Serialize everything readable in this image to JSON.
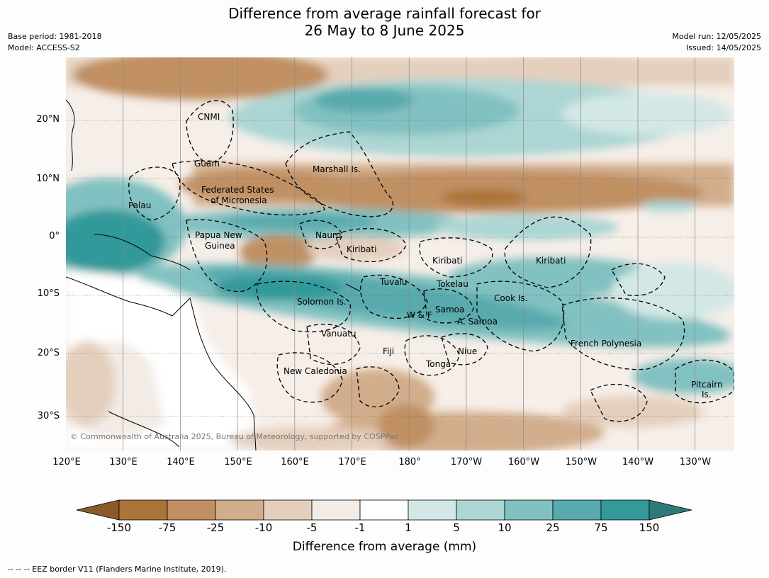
{
  "title_line1": "Difference from average rainfall forecast for",
  "title_line2": "26 May to 8 June 2025",
  "base_period": "Base period: 1981-2018",
  "model": "Model: ACCESS-S2",
  "model_run": "Model run: 12/05/2025",
  "issued": "Issued: 14/05/2025",
  "lon_labels": [
    "120°E",
    "130°E",
    "140°E",
    "150°E",
    "160°E",
    "170°E",
    "180°",
    "170°W",
    "160°W",
    "150°W",
    "140°W",
    "130°W"
  ],
  "lat_labels": [
    "20°N",
    "10°N",
    "0°",
    "10°S",
    "20°S",
    "30°S"
  ],
  "region_labels": [
    "CNMI",
    "Guam",
    "Marshall Is.",
    "Federated States",
    "of Micronesia",
    "Palau",
    "Papua New",
    "Guinea",
    "Nauru",
    "Kiribati",
    "Kiribati",
    "Kiribati",
    "Tuvalu",
    "Tokelau",
    "Solomon Is.",
    "W & F",
    "Samoa",
    "A. Samoa",
    "Cook Is.",
    "Vanuatu",
    "Fiji",
    "Niue",
    "Tonga",
    "New Caledonia",
    "French Polynesia",
    "Pitcairn",
    "Is."
  ],
  "copyright": "© Commonwealth of Australia 2025, Bureau of Meteorology, supported by COSPPac",
  "colorbar": {
    "title": "Difference from average (mm)",
    "ticks": [
      "-150",
      "-75",
      "-25",
      "-10",
      "-5",
      "-1",
      "1",
      "5",
      "10",
      "25",
      "75",
      "150"
    ],
    "colors": [
      "#8a5a2b",
      "#ab7438",
      "#c09063",
      "#d1ad8b",
      "#e4cfbd",
      "#f3ebe5",
      "#ffffff",
      "#d3e8e6",
      "#acd6d4",
      "#82c1c1",
      "#58aaad",
      "#33999a",
      "#2e7a78"
    ]
  },
  "footer": "--  --  -- EEZ border V11 (Flanders Marine Institute, 2019)."
}
